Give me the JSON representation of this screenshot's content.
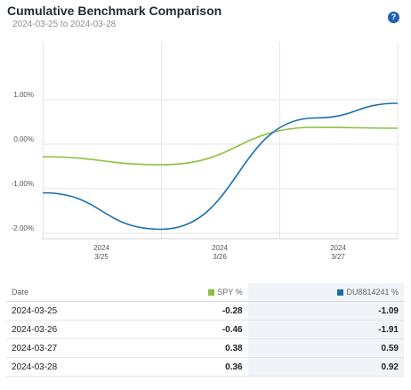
{
  "header": {
    "title": "Cumulative Benchmark Comparison",
    "subtitle": "2024-03-25 to 2024-03-28",
    "help_icon": "?"
  },
  "chart_data": {
    "type": "line",
    "yticks": [
      "1.00%",
      "0.00%",
      "-1.00%",
      "-2.00%"
    ],
    "ytick_values": [
      1,
      0,
      -1,
      -2
    ],
    "ylim": [
      -2.1,
      1.5
    ],
    "x": [
      "2024-03-25",
      "2024-03-26",
      "2024-03-27",
      "2024-03-28"
    ],
    "xticks": [
      {
        "year": "2024",
        "day": "3/25"
      },
      {
        "year": "2024",
        "day": "3/26"
      },
      {
        "year": "2024",
        "day": "3/27"
      }
    ],
    "grid": true,
    "series": [
      {
        "name": "SPY %",
        "color": "#8dc03f",
        "values": [
          -0.28,
          -0.46,
          0.38,
          0.36
        ]
      },
      {
        "name": "DU8814241 %",
        "color": "#1a6faf",
        "values": [
          -1.09,
          -1.91,
          0.59,
          0.92
        ]
      }
    ]
  },
  "table": {
    "headers": {
      "date": "Date",
      "spy": "SPY %",
      "acct": "DU8814241 %"
    },
    "rows": [
      {
        "date": "2024-03-25",
        "spy": "-0.28",
        "acct": "-1.09"
      },
      {
        "date": "2024-03-26",
        "spy": "-0.46",
        "acct": "-1.91"
      },
      {
        "date": "2024-03-27",
        "spy": "0.38",
        "acct": "0.59"
      },
      {
        "date": "2024-03-28",
        "spy": "0.36",
        "acct": "0.92"
      }
    ]
  }
}
